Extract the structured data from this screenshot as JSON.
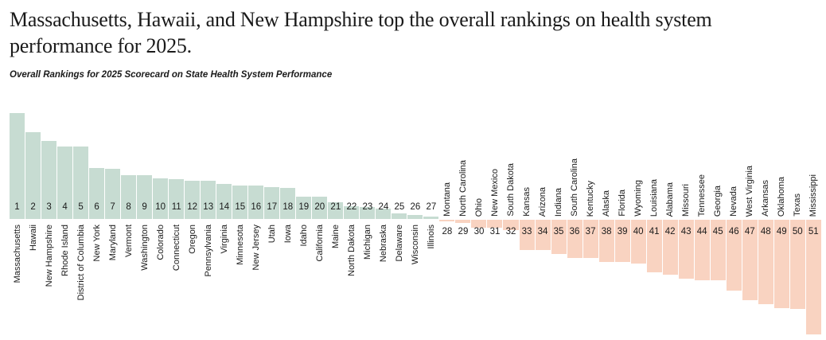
{
  "title": "Massachusetts, Hawaii, and New Hampshire top the overall rankings on health system performance for 2025.",
  "subtitle": "Overall Rankings for 2025 Scorecard on State Health System Performance",
  "colors": {
    "positive_bar": "#c7dcd2",
    "negative_bar": "#f9d3c1",
    "text": "#1a1a1a"
  },
  "chart_data": {
    "type": "bar",
    "subtype": "diverging-ranking",
    "title": "Overall Rankings for 2025 Scorecard on State Health System Performance",
    "xlabel": "",
    "ylabel": "",
    "grid": false,
    "legend": null,
    "axis_note": "no numeric axis shown; bars diverge from a common baseline, values below are relative bar lengths in pixels (positive = above baseline / better, negative = below baseline / worse)",
    "categories": [
      "Massachusetts",
      "Hawaii",
      "New Hampshire",
      "Rhode Island",
      "District of Columbia",
      "New York",
      "Maryland",
      "Vermont",
      "Washington",
      "Colorado",
      "Connecticut",
      "Oregon",
      "Pennsylvania",
      "Virginia",
      "Minnesota",
      "New Jersey",
      "Utah",
      "Iowa",
      "Idaho",
      "California",
      "Maine",
      "North Dakota",
      "Michigan",
      "Nebraska",
      "Delaware",
      "Wisconsin",
      "Illinois",
      "Montana",
      "North Carolina",
      "Ohio",
      "New Mexico",
      "South Dakota",
      "Kansas",
      "Arizona",
      "Indiana",
      "South Carolina",
      "Kentucky",
      "Alaska",
      "Florida",
      "Wyoming",
      "Louisiana",
      "Alabama",
      "Missouri",
      "Tennessee",
      "Georgia",
      "Nevada",
      "West Virginia",
      "Arkansas",
      "Oklahoma",
      "Texas",
      "Mississippi"
    ],
    "ranks": [
      1,
      2,
      3,
      4,
      5,
      6,
      7,
      8,
      9,
      10,
      11,
      12,
      13,
      14,
      15,
      16,
      17,
      18,
      19,
      20,
      21,
      22,
      23,
      24,
      25,
      26,
      27,
      28,
      29,
      30,
      31,
      32,
      33,
      34,
      35,
      36,
      37,
      38,
      39,
      40,
      41,
      42,
      43,
      44,
      45,
      46,
      47,
      48,
      49,
      50,
      51
    ],
    "values": [
      133,
      109,
      98,
      91,
      91,
      64,
      63,
      55,
      55,
      51,
      50,
      48,
      48,
      44,
      42,
      42,
      40,
      39,
      28,
      28,
      21,
      16,
      15,
      13,
      7,
      5,
      3,
      -2,
      -4,
      -10,
      -10,
      -13,
      -38,
      -38,
      -43,
      -48,
      -48,
      -53,
      -53,
      -55,
      -66,
      -69,
      -74,
      -76,
      -76,
      -89,
      -101,
      -106,
      -111,
      -112,
      -144
    ]
  }
}
